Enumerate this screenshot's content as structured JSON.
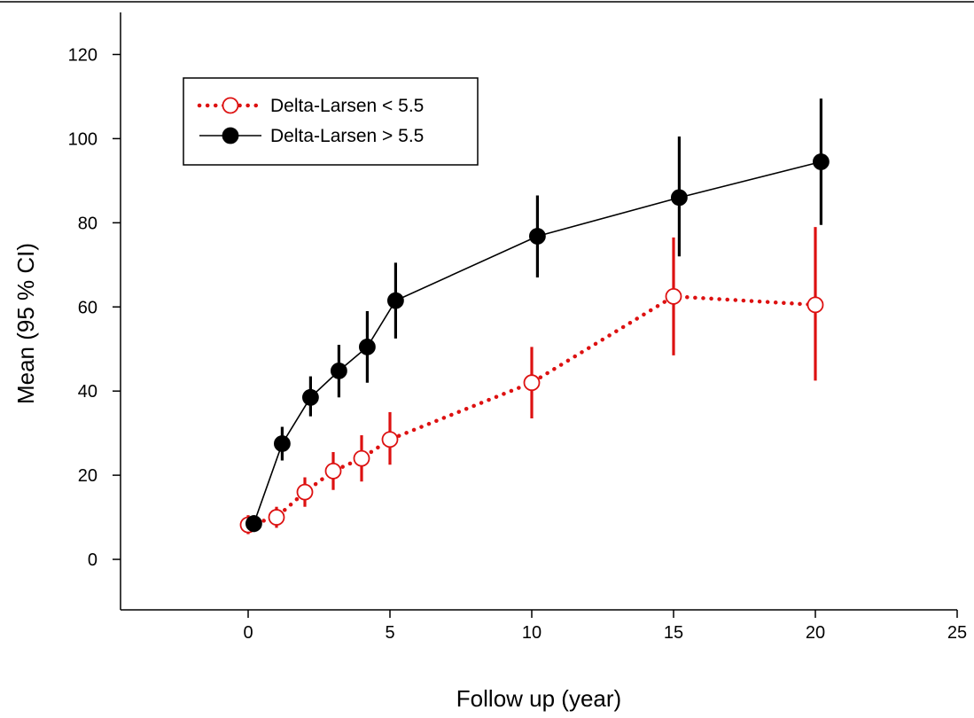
{
  "chart_data": {
    "type": "line",
    "title": "",
    "xlabel": "Follow up (year)",
    "ylabel": "Mean (95 % CI)",
    "xlim": [
      -4.5,
      25
    ],
    "ylim": [
      -12,
      130
    ],
    "xticks": [
      0,
      5,
      10,
      15,
      20,
      25
    ],
    "yticks": [
      0,
      20,
      40,
      60,
      80,
      100,
      120
    ],
    "grid": false,
    "legend_position": "top-left",
    "series": [
      {
        "name": "Delta-Larsen < 5.5",
        "color": "#dd1111",
        "line_style": "dotted",
        "marker": "open-circle",
        "points": [
          {
            "x": 0,
            "y": 8.2,
            "lo": 6.0,
            "hi": 10.5
          },
          {
            "x": 1,
            "y": 10.0,
            "lo": 7.5,
            "hi": 12.5
          },
          {
            "x": 2,
            "y": 16.0,
            "lo": 12.5,
            "hi": 19.5
          },
          {
            "x": 3,
            "y": 21.0,
            "lo": 16.5,
            "hi": 25.5
          },
          {
            "x": 4,
            "y": 24.0,
            "lo": 18.5,
            "hi": 29.5
          },
          {
            "x": 5,
            "y": 28.5,
            "lo": 22.5,
            "hi": 35.0
          },
          {
            "x": 10,
            "y": 42.0,
            "lo": 33.5,
            "hi": 50.5
          },
          {
            "x": 15,
            "y": 62.5,
            "lo": 48.5,
            "hi": 76.5
          },
          {
            "x": 20,
            "y": 60.5,
            "lo": 42.5,
            "hi": 79.0
          }
        ]
      },
      {
        "name": "Delta-Larsen > 5.5",
        "color": "#000000",
        "line_style": "solid",
        "marker": "filled-circle",
        "points": [
          {
            "x": 0.2,
            "y": 8.5,
            "lo": 6.5,
            "hi": 10.5
          },
          {
            "x": 1.2,
            "y": 27.5,
            "lo": 23.5,
            "hi": 31.5
          },
          {
            "x": 2.2,
            "y": 38.5,
            "lo": 34.0,
            "hi": 43.5
          },
          {
            "x": 3.2,
            "y": 44.8,
            "lo": 38.5,
            "hi": 51.0
          },
          {
            "x": 4.2,
            "y": 50.5,
            "lo": 42.0,
            "hi": 59.0
          },
          {
            "x": 5.2,
            "y": 61.5,
            "lo": 52.5,
            "hi": 70.5
          },
          {
            "x": 10.2,
            "y": 76.8,
            "lo": 67.0,
            "hi": 86.5
          },
          {
            "x": 15.2,
            "y": 86.0,
            "lo": 72.0,
            "hi": 100.5
          },
          {
            "x": 20.2,
            "y": 94.5,
            "lo": 79.5,
            "hi": 109.5
          }
        ]
      }
    ]
  }
}
